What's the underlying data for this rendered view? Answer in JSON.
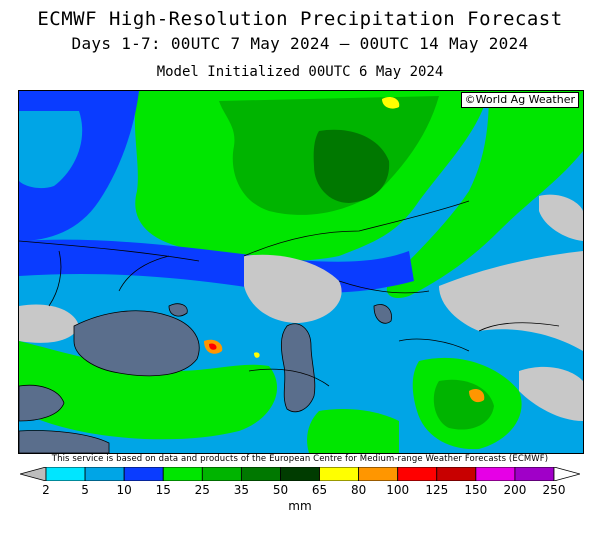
{
  "title": "ECMWF High-Resolution Precipitation Forecast",
  "subtitle": "Days 1-7: 00UTC 7 May 2024 – 00UTC 14 May 2024",
  "init_line": "Model Initialized 00UTC 6 May 2024",
  "copyright": "©World Ag Weather",
  "disclaimer": "This service is based on data and products of the European Centre for Medium-range Weather Forecasts (ECMWF)",
  "legend": {
    "unit": "mm",
    "ticks": [
      "2",
      "5",
      "10",
      "15",
      "25",
      "35",
      "50",
      "65",
      "80",
      "100",
      "125",
      "150",
      "200",
      "250"
    ],
    "colors": [
      "#bdbdbd",
      "#00e6ff",
      "#00a5e6",
      "#0a3cff",
      "#00e600",
      "#00b400",
      "#007800",
      "#003c00",
      "#ffff00",
      "#ff9600",
      "#ff0000",
      "#c80000",
      "#e600e6",
      "#a000c8",
      "#ffffff"
    ]
  },
  "map": {
    "water_color": "#5a6e8c",
    "land_no_rain_color": "#c8c8c8"
  }
}
